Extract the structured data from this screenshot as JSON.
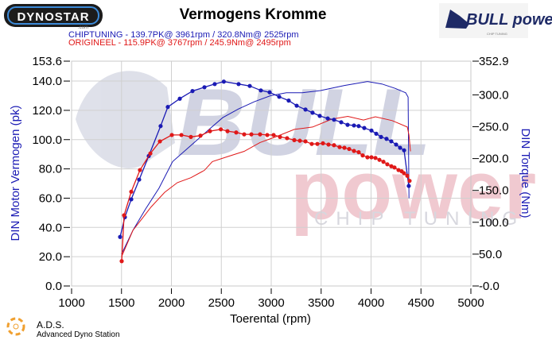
{
  "header": {
    "title": "Vermogens Kromme",
    "left_logo": "DYNOSTAR",
    "left_logo_sub": ".com",
    "right_logo": "BULL power",
    "right_logo_sub": "CHIP TUNING"
  },
  "footer": {
    "brand": "A.D.S.",
    "brand_sub": "Advanced Dyno Station"
  },
  "watermark": {
    "line1": "BULL",
    "line2": "power",
    "line3": "CHIP TUNING"
  },
  "colors": {
    "chiptuning": "#1a1ab4",
    "origineel": "#e01818",
    "grid": "#d0d0d0"
  },
  "chart_data": {
    "type": "line",
    "title": "Vermogens Kromme",
    "xlabel": "Toerental (rpm)",
    "ylabel": "DIN Motor Vermogen (pk)",
    "y2label": "DIN Torque (Nm)",
    "xlim": [
      1000,
      5000
    ],
    "ylim": [
      0,
      153.6
    ],
    "y2lim": [
      0,
      352.9
    ],
    "xticks": [
      "1000",
      "1500",
      "2000",
      "2500",
      "3000",
      "3500",
      "4000",
      "4500",
      "5000"
    ],
    "yticks": [
      "0.0",
      "20.0",
      "40.0",
      "60.0",
      "80.0",
      "100.0",
      "120.0",
      "140.0",
      "153.6"
    ],
    "y2ticks": [
      "0.0",
      "50.0",
      "100.0",
      "150.0",
      "200.0",
      "250.0",
      "300.0",
      "352.9"
    ],
    "grid": true,
    "legend": [
      {
        "name": "CHIPTUNING",
        "text": "CHIPTUNING  - 139.7PK@ 3961rpm / 320.8Nm@ 2525rpm"
      },
      {
        "name": "ORIGINEEL",
        "text": "ORIGINEEL  - 115.9PK@ 3767rpm / 245.9Nm@ 2495rpm"
      }
    ],
    "legend_position": "top-left",
    "series": [
      {
        "name": "CHIPTUNING power (pk)",
        "axis": "left",
        "markers": false,
        "x": [
          1500,
          1614,
          1741,
          1876,
          2012,
          2195,
          2378,
          2514,
          2673,
          2833,
          2992,
          3151,
          3311,
          3494,
          3733,
          3964,
          4108,
          4243,
          4347,
          4371,
          4380
        ],
        "y": [
          21.7,
          38,
          52.6,
          66.8,
          85,
          96,
          107,
          115,
          121,
          126,
          130,
          132,
          132,
          133.5,
          137,
          139.7,
          138,
          135,
          132,
          129,
          60
        ]
      },
      {
        "name": "ORIGINEEL power (pk)",
        "axis": "left",
        "markers": false,
        "x": [
          1500,
          1614,
          1717,
          1797,
          1932,
          2060,
          2195,
          2331,
          2410,
          2570,
          2729,
          2888,
          3048,
          3231,
          3414,
          3606,
          3767,
          3924,
          4044,
          4211,
          4363,
          4380,
          4395
        ],
        "y": [
          20,
          38,
          47,
          54,
          64,
          70.6,
          74,
          79,
          85,
          88.5,
          92,
          98,
          102,
          107,
          108.6,
          114,
          115.9,
          113.4,
          115.6,
          113,
          108.6,
          103,
          92
        ]
      },
      {
        "name": "CHIPTUNING torque (Nm)",
        "axis": "right",
        "markers": true,
        "x": [
          1486,
          1534,
          1598,
          1677,
          1773,
          1892,
          1964,
          2084,
          2211,
          2331,
          2434,
          2525,
          2673,
          2785,
          2896,
          2984,
          3080,
          3175,
          3255,
          3343,
          3414,
          3486,
          3566,
          3629,
          3701,
          3765,
          3829,
          3876,
          3932,
          4004,
          4052,
          4100,
          4155,
          4203,
          4251,
          4291,
          4331,
          4378
        ],
        "y": [
          77,
          108,
          136,
          167,
          204,
          251,
          281,
          294,
          306,
          312,
          317,
          320.8,
          317,
          314,
          307,
          304,
          297,
          291,
          283,
          277,
          272,
          267,
          263,
          261,
          257,
          253,
          252,
          251,
          248,
          244,
          239,
          234,
          231,
          227,
          222,
          217,
          213,
          157
        ]
      },
      {
        "name": "ORIGINEEL torque (Nm)",
        "axis": "right",
        "markers": true,
        "x": [
          1502,
          1526,
          1598,
          1685,
          1789,
          1885,
          2004,
          2100,
          2195,
          2291,
          2386,
          2495,
          2562,
          2649,
          2729,
          2801,
          2888,
          2960,
          3024,
          3088,
          3159,
          3231,
          3287,
          3343,
          3406,
          3462,
          3518,
          3574,
          3629,
          3685,
          3733,
          3781,
          3829,
          3876,
          3916,
          3964,
          4004,
          4044,
          4084,
          4124,
          4163,
          4203,
          4235,
          4275,
          4307,
          4331,
          4363,
          4386
        ],
        "y": [
          39,
          111,
          148,
          182,
          208,
          227,
          237,
          237,
          234,
          236,
          243,
          245.9,
          243,
          241,
          238,
          238,
          238,
          237,
          237,
          234,
          232,
          229,
          228,
          227,
          223,
          223,
          224,
          222,
          221,
          218,
          217,
          215,
          212,
          210,
          205,
          202,
          202,
          201,
          198,
          195,
          191,
          188,
          186,
          182,
          180,
          177,
          173,
          165
        ]
      }
    ]
  }
}
